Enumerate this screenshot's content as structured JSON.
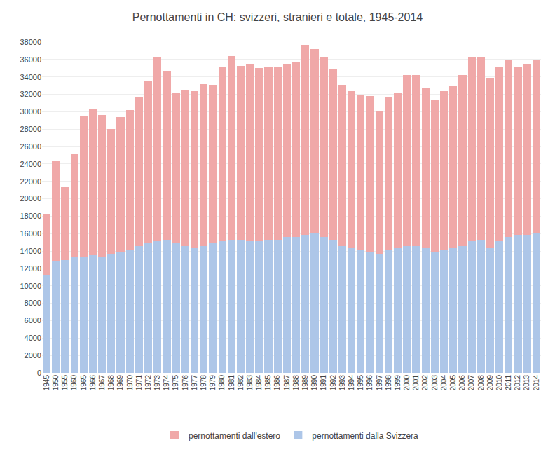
{
  "chart_data": {
    "type": "bar",
    "title": "Pernottamenti in CH: svizzeri, stranieri e totale, 1945-2014",
    "stacked": true,
    "categories": [
      "1945",
      "1950",
      "1955",
      "1960",
      "1965",
      "1966",
      "1967",
      "1968",
      "1969",
      "1970",
      "1971",
      "1972",
      "1973",
      "1974",
      "1975",
      "1976",
      "1977",
      "1978",
      "1979",
      "1980",
      "1981",
      "1982",
      "1983",
      "1984",
      "1985",
      "1986",
      "1987",
      "1988",
      "1989",
      "1990",
      "1991",
      "1992",
      "1993",
      "1994",
      "1995",
      "1996",
      "1997",
      "1998",
      "1999",
      "2000",
      "2001",
      "2002",
      "2003",
      "2004",
      "2005",
      "2006",
      "2007",
      "2008",
      "2009",
      "2010",
      "2011",
      "2012",
      "2013",
      "2014"
    ],
    "series": [
      {
        "name": "pernottamenti dalla Svizzera",
        "color": "#adc6e8",
        "values": [
          11200,
          12800,
          13000,
          13300,
          13300,
          13500,
          13300,
          13600,
          13900,
          14200,
          14600,
          14900,
          15100,
          15300,
          14900,
          14600,
          14300,
          14600,
          14900,
          15100,
          15300,
          15300,
          15100,
          15100,
          15300,
          15300,
          15600,
          15600,
          15900,
          16100,
          15600,
          15300,
          14600,
          14300,
          14100,
          13900,
          13600,
          14100,
          14300,
          14600,
          14600,
          14300,
          13900,
          14100,
          14300,
          14600,
          15100,
          15300,
          14300,
          15100,
          15600,
          15900,
          15900,
          16100
        ]
      },
      {
        "name": "pernottamenti dall'estero",
        "color": "#f0a8a8",
        "values": [
          7000,
          11500,
          8300,
          11800,
          16200,
          16800,
          16300,
          14400,
          15500,
          16000,
          17100,
          18600,
          21200,
          19400,
          17200,
          17900,
          18100,
          18600,
          18200,
          20100,
          21100,
          20000,
          20300,
          19900,
          19900,
          19900,
          19900,
          20100,
          21800,
          21100,
          20600,
          19600,
          18500,
          18100,
          17900,
          17900,
          16500,
          17600,
          17900,
          19600,
          19600,
          18400,
          17400,
          18300,
          18600,
          19600,
          21100,
          20900,
          19600,
          20100,
          20400,
          19300,
          19600,
          19900
        ]
      }
    ],
    "ylim": [
      0,
      38000
    ],
    "yticks": [
      0,
      2000,
      4000,
      6000,
      8000,
      10000,
      12000,
      14000,
      16000,
      18000,
      20000,
      22000,
      24000,
      26000,
      28000,
      30000,
      32000,
      34000,
      36000,
      38000
    ],
    "grid": true,
    "legend": "bottom"
  }
}
